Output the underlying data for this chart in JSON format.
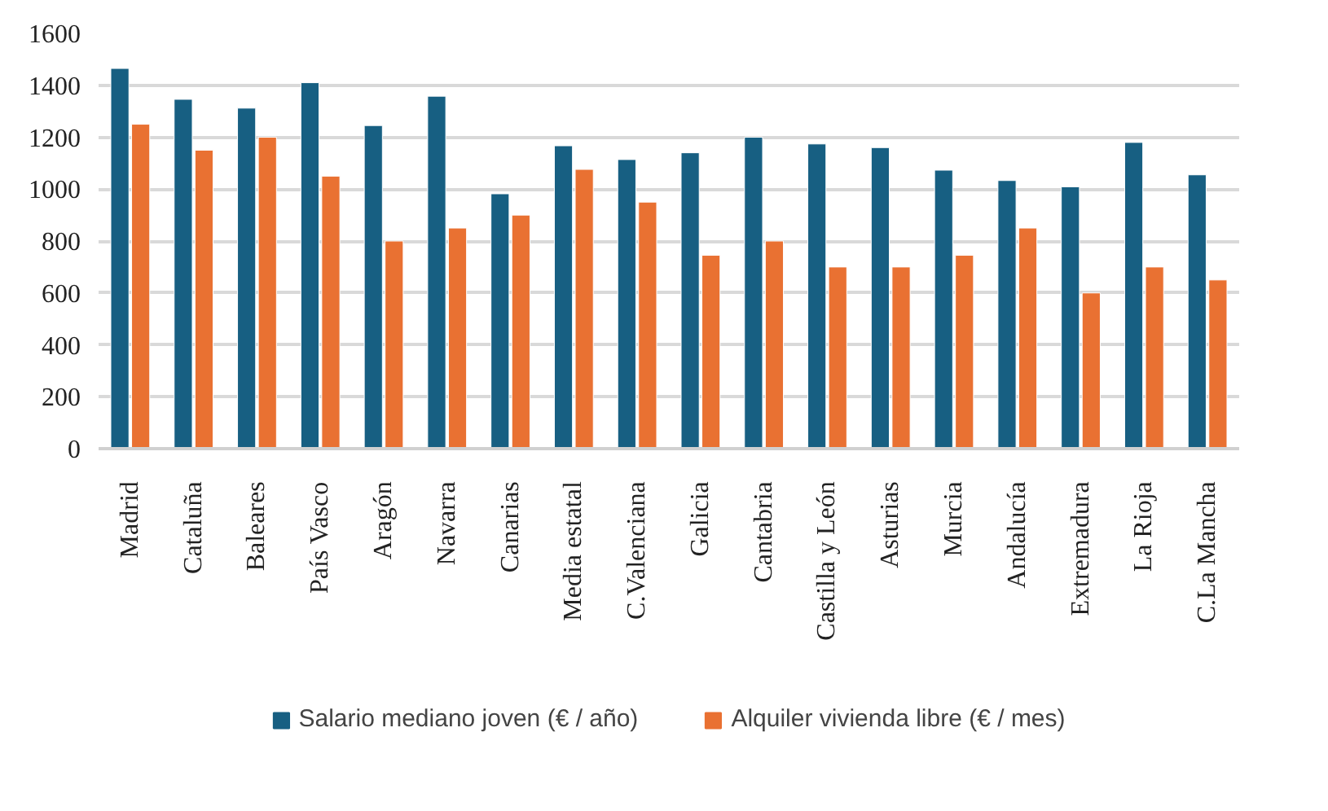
{
  "chart_data": {
    "type": "bar",
    "categories": [
      "Madrid",
      "Cataluña",
      "Baleares",
      "País Vasco",
      "Aragón",
      "Navarra",
      "Canarias",
      "Media estatal",
      "C.Valenciana",
      "Galicia",
      "Cantabria",
      "Castilla y León",
      "Asturias",
      "Murcia",
      "Andalucía",
      "Extremadura",
      "La Rioja",
      "C.La Mancha"
    ],
    "series": [
      {
        "name": "Salario mediano joven (€ / año)",
        "color": "#175f82",
        "values": [
          1465,
          1346,
          1312,
          1410,
          1245,
          1358,
          982,
          1167,
          1114,
          1140,
          1200,
          1174,
          1160,
          1073,
          1033,
          1009,
          1180,
          1055
        ]
      },
      {
        "name": "Alquiler vivienda libre (€ / mes)",
        "color": "#e97132",
        "values": [
          1250,
          1150,
          1200,
          1050,
          800,
          850,
          900,
          1076,
          950,
          745,
          800,
          700,
          700,
          745,
          850,
          600,
          700,
          650
        ]
      }
    ],
    "ylim": [
      0,
      1600
    ],
    "yticks": [
      0,
      200,
      400,
      600,
      800,
      1000,
      1200,
      1400,
      1600
    ],
    "grid": "y",
    "legend": "bottom"
  }
}
